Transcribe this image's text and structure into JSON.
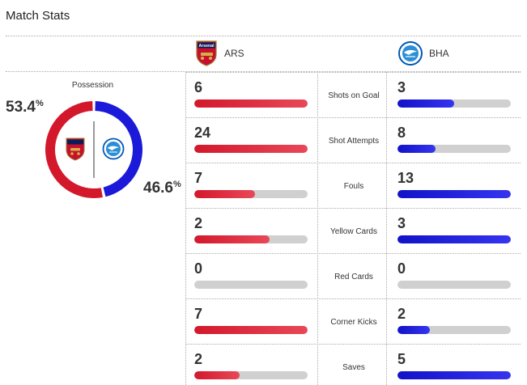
{
  "title": "Match Stats",
  "colors": {
    "home": "#d3182c",
    "away": "#1a1ad8",
    "track": "#d0d0d0"
  },
  "teams": {
    "home": {
      "abbr": "ARS",
      "crest": "arsenal-crest-icon",
      "crest_text": "Arsenal"
    },
    "away": {
      "abbr": "BHA",
      "crest": "brighton-crest-icon"
    }
  },
  "possession": {
    "label": "Possession",
    "home_pct": "53.4",
    "away_pct": "46.6",
    "unit": "%",
    "home_value": 53.4,
    "away_value": 46.6
  },
  "stats": [
    {
      "label": "Shots on Goal",
      "home": "6",
      "away": "3",
      "home_fill": 1.0,
      "away_fill": 0.5
    },
    {
      "label": "Shot Attempts",
      "home": "24",
      "away": "8",
      "home_fill": 1.0,
      "away_fill": 0.333
    },
    {
      "label": "Fouls",
      "home": "7",
      "away": "13",
      "home_fill": 0.538,
      "away_fill": 1.0
    },
    {
      "label": "Yellow Cards",
      "home": "2",
      "away": "3",
      "home_fill": 0.667,
      "away_fill": 1.0
    },
    {
      "label": "Red Cards",
      "home": "0",
      "away": "0",
      "home_fill": 0,
      "away_fill": 0
    },
    {
      "label": "Corner Kicks",
      "home": "7",
      "away": "2",
      "home_fill": 1.0,
      "away_fill": 0.286
    },
    {
      "label": "Saves",
      "home": "2",
      "away": "5",
      "home_fill": 0.4,
      "away_fill": 1.0
    }
  ]
}
